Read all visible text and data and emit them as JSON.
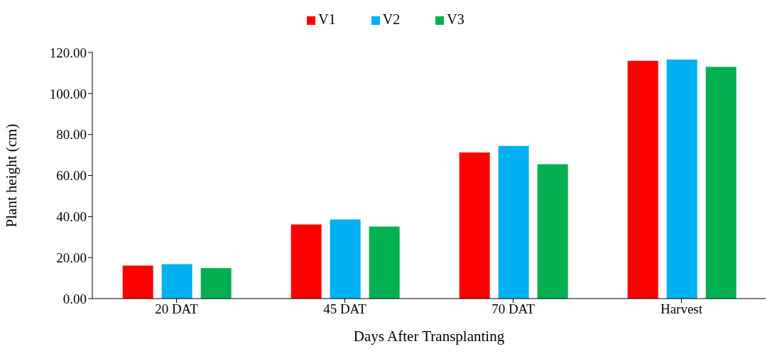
{
  "chart_data": {
    "type": "bar",
    "xlabel": "Days After Transplanting",
    "ylabel": "Plant height (cm)",
    "categories": [
      "20 DAT",
      "45 DAT",
      "70 DAT",
      "Harvest"
    ],
    "series": [
      {
        "name": "V1",
        "color": "#ff0000",
        "values": [
          16.1,
          36.1,
          71.2,
          115.9
        ]
      },
      {
        "name": "V2",
        "color": "#00b0f0",
        "values": [
          16.8,
          38.6,
          74.4,
          116.5
        ]
      },
      {
        "name": "V3",
        "color": "#00b050",
        "values": [
          14.9,
          35.1,
          65.5,
          113.0
        ]
      }
    ],
    "ylim": [
      0,
      120
    ],
    "yticks": [
      {
        "value": 0,
        "label": "0.00"
      },
      {
        "value": 20,
        "label": "20.00"
      },
      {
        "value": 40,
        "label": "40.00"
      },
      {
        "value": 60,
        "label": "60.00"
      },
      {
        "value": 80,
        "label": "80.00"
      },
      {
        "value": 100,
        "label": "100.00"
      },
      {
        "value": 120,
        "label": "120.00"
      }
    ],
    "grid": false,
    "legend": "top"
  }
}
